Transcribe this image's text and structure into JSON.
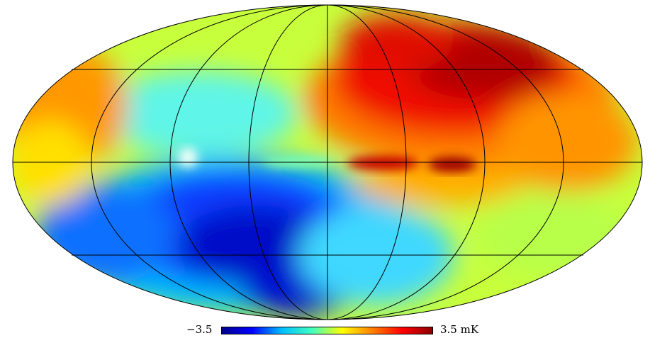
{
  "map": {
    "projection": "mollweide",
    "graticule": true,
    "colormap": "jet"
  },
  "colorbar": {
    "min_label": "−3.5",
    "max_label": "3.5 mK",
    "colors": [
      "#00008b",
      "#0000ff",
      "#00bfff",
      "#40ffbf",
      "#ffff00",
      "#ff8000",
      "#ff0000",
      "#8b0000"
    ]
  }
}
